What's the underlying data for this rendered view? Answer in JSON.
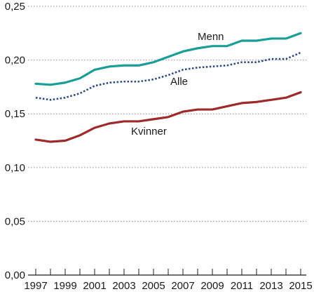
{
  "chart_data": {
    "type": "line",
    "title": "",
    "xlabel": "",
    "ylabel": "",
    "x": [
      1997,
      1998,
      1999,
      2000,
      2001,
      2002,
      2003,
      2004,
      2005,
      2006,
      2007,
      2008,
      2009,
      2010,
      2011,
      2012,
      2013,
      2014,
      2015
    ],
    "x_tick_labels": [
      "1997",
      "1999",
      "2001",
      "2003",
      "2005",
      "2007",
      "2009",
      "2011",
      "2013",
      "2015"
    ],
    "y_tick_labels": [
      "0,00",
      "0,05",
      "0,10",
      "0,15",
      "0,20",
      "0,25"
    ],
    "ylim": [
      0,
      0.25
    ],
    "y_ticks": [
      0,
      0.05,
      0.1,
      0.15,
      0.2,
      0.25
    ],
    "grid": "horizontal dotted",
    "legend": "inline labels next to lines",
    "series": [
      {
        "name": "Menn",
        "color": "#1a9e96",
        "style": "solid",
        "values": [
          0.178,
          0.177,
          0.179,
          0.183,
          0.191,
          0.194,
          0.195,
          0.195,
          0.198,
          0.203,
          0.208,
          0.211,
          0.213,
          0.213,
          0.218,
          0.218,
          0.22,
          0.22,
          0.225
        ]
      },
      {
        "name": "Alle",
        "color": "#2c4a7c",
        "style": "dotted",
        "values": [
          0.165,
          0.163,
          0.165,
          0.169,
          0.176,
          0.179,
          0.18,
          0.18,
          0.182,
          0.186,
          0.191,
          0.193,
          0.194,
          0.195,
          0.198,
          0.198,
          0.201,
          0.201,
          0.207
        ]
      },
      {
        "name": "Kvinner",
        "color": "#9e2a2b",
        "style": "solid",
        "values": [
          0.126,
          0.124,
          0.125,
          0.13,
          0.137,
          0.141,
          0.143,
          0.143,
          0.145,
          0.147,
          0.152,
          0.154,
          0.154,
          0.157,
          0.16,
          0.161,
          0.163,
          0.165,
          0.17
        ]
      }
    ]
  }
}
